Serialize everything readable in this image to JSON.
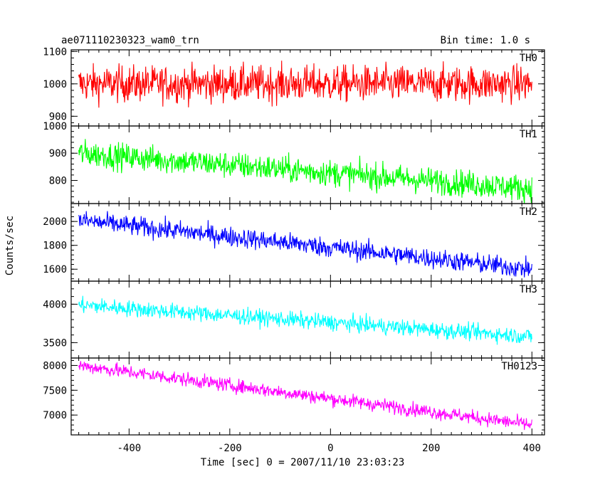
{
  "chart_data": {
    "type": "line",
    "title": "ae071110230323_wam0_trn",
    "bin_time_label": "Bin time: 1.0 s",
    "xlabel": "Time [sec] 0 = 2007/11/10 23:03:23",
    "ylabel": "Counts/sec",
    "xlim": [
      -515,
      425
    ],
    "x_ticks": [
      -400,
      -200,
      0,
      200,
      400
    ],
    "grid": false,
    "panels": [
      {
        "name": "TH0",
        "color": "#ff0000",
        "ylim": [
          870,
          1105
        ],
        "y_ticks": [
          900,
          1000,
          1100
        ],
        "trend": {
          "x": [
            -500,
            400
          ],
          "y": [
            1000,
            1000
          ]
        },
        "noise_amplitude": 40
      },
      {
        "name": "TH1",
        "color": "#00ff00",
        "ylim": [
          715,
          1000
        ],
        "y_ticks": [
          800,
          900,
          1000
        ],
        "trend": {
          "x": [
            -500,
            400
          ],
          "y": [
            900,
            770
          ]
        },
        "noise_amplitude": 35
      },
      {
        "name": "TH2",
        "color": "#0000ff",
        "ylim": [
          1500,
          2150
        ],
        "y_ticks": [
          1600,
          1800,
          2000
        ],
        "trend": {
          "x": [
            -500,
            400
          ],
          "y": [
            2010,
            1600
          ]
        },
        "noise_amplitude": 60
      },
      {
        "name": "TH3",
        "color": "#00ffff",
        "ylim": [
          3300,
          4300
        ],
        "y_ticks": [
          3500,
          4000
        ],
        "trend": {
          "x": [
            -500,
            400
          ],
          "y": [
            3990,
            3580
          ]
        },
        "noise_amplitude": 75
      },
      {
        "name": "TH0123",
        "color": "#ff00ff",
        "ylim": [
          6600,
          8150
        ],
        "y_ticks": [
          7000,
          7500,
          8000
        ],
        "trend": {
          "x": [
            -500,
            400
          ],
          "y": [
            8000,
            6800
          ]
        },
        "noise_amplitude": 100
      }
    ]
  }
}
